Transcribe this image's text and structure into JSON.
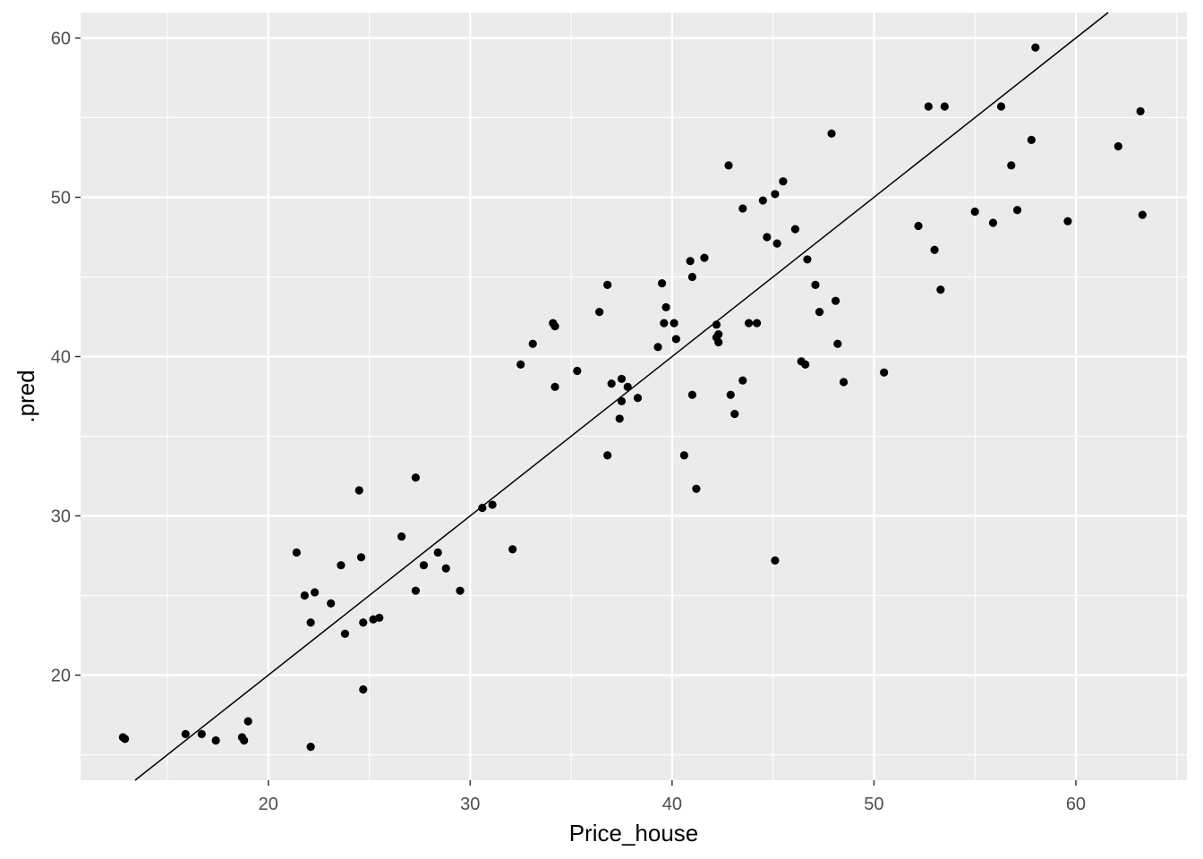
{
  "chart_data": {
    "type": "scatter",
    "title": "",
    "xlabel": "Price_house",
    "ylabel": ".pred",
    "xlim": [
      10.7,
      65.5
    ],
    "ylim": [
      13.4,
      61.6
    ],
    "x_ticks": [
      20,
      30,
      40,
      50,
      60
    ],
    "y_ticks": [
      20,
      30,
      40,
      50,
      60
    ],
    "grid": true,
    "legend": "none",
    "colors": {
      "panel": "#ebebeb",
      "grid": "#ffffff",
      "point": "#000000",
      "line": "#000000"
    },
    "reference_line": {
      "slope": 1,
      "intercept": 0
    },
    "points": [
      {
        "x": 12.8,
        "y": 16.1
      },
      {
        "x": 12.9,
        "y": 16.0
      },
      {
        "x": 15.9,
        "y": 16.3
      },
      {
        "x": 16.7,
        "y": 16.3
      },
      {
        "x": 17.4,
        "y": 15.9
      },
      {
        "x": 18.7,
        "y": 16.1
      },
      {
        "x": 18.8,
        "y": 15.9
      },
      {
        "x": 19.0,
        "y": 17.1
      },
      {
        "x": 22.1,
        "y": 15.5
      },
      {
        "x": 21.4,
        "y": 27.7
      },
      {
        "x": 21.8,
        "y": 25.0
      },
      {
        "x": 22.1,
        "y": 23.3
      },
      {
        "x": 22.3,
        "y": 25.2
      },
      {
        "x": 23.1,
        "y": 24.5
      },
      {
        "x": 23.6,
        "y": 26.9
      },
      {
        "x": 23.8,
        "y": 22.6
      },
      {
        "x": 24.5,
        "y": 31.6
      },
      {
        "x": 24.6,
        "y": 27.4
      },
      {
        "x": 24.7,
        "y": 23.3
      },
      {
        "x": 24.7,
        "y": 19.1
      },
      {
        "x": 25.2,
        "y": 23.5
      },
      {
        "x": 25.5,
        "y": 23.6
      },
      {
        "x": 26.6,
        "y": 28.7
      },
      {
        "x": 27.3,
        "y": 32.4
      },
      {
        "x": 27.3,
        "y": 25.3
      },
      {
        "x": 27.7,
        "y": 26.9
      },
      {
        "x": 28.4,
        "y": 27.7
      },
      {
        "x": 28.8,
        "y": 26.7
      },
      {
        "x": 29.5,
        "y": 25.3
      },
      {
        "x": 30.6,
        "y": 30.5
      },
      {
        "x": 31.1,
        "y": 30.7
      },
      {
        "x": 32.1,
        "y": 27.9
      },
      {
        "x": 32.5,
        "y": 39.5
      },
      {
        "x": 33.1,
        "y": 40.8
      },
      {
        "x": 34.1,
        "y": 42.1
      },
      {
        "x": 34.2,
        "y": 41.9
      },
      {
        "x": 34.2,
        "y": 38.1
      },
      {
        "x": 35.3,
        "y": 39.1
      },
      {
        "x": 36.4,
        "y": 42.8
      },
      {
        "x": 36.8,
        "y": 44.5
      },
      {
        "x": 36.8,
        "y": 33.8
      },
      {
        "x": 37.0,
        "y": 38.3
      },
      {
        "x": 37.5,
        "y": 38.6
      },
      {
        "x": 37.5,
        "y": 37.2
      },
      {
        "x": 37.4,
        "y": 36.1
      },
      {
        "x": 37.8,
        "y": 38.1
      },
      {
        "x": 38.3,
        "y": 37.4
      },
      {
        "x": 39.3,
        "y": 40.6
      },
      {
        "x": 39.5,
        "y": 44.6
      },
      {
        "x": 39.6,
        "y": 42.1
      },
      {
        "x": 39.7,
        "y": 43.1
      },
      {
        "x": 40.1,
        "y": 42.1
      },
      {
        "x": 40.2,
        "y": 41.1
      },
      {
        "x": 40.6,
        "y": 33.8
      },
      {
        "x": 40.9,
        "y": 46.0
      },
      {
        "x": 41.0,
        "y": 45.0
      },
      {
        "x": 41.0,
        "y": 37.6
      },
      {
        "x": 41.2,
        "y": 31.7
      },
      {
        "x": 41.6,
        "y": 46.2
      },
      {
        "x": 42.2,
        "y": 42.0
      },
      {
        "x": 42.2,
        "y": 41.2
      },
      {
        "x": 42.3,
        "y": 41.4
      },
      {
        "x": 42.3,
        "y": 40.9
      },
      {
        "x": 42.8,
        "y": 52.0
      },
      {
        "x": 42.9,
        "y": 37.6
      },
      {
        "x": 43.1,
        "y": 36.4
      },
      {
        "x": 43.5,
        "y": 49.3
      },
      {
        "x": 43.5,
        "y": 38.5
      },
      {
        "x": 43.8,
        "y": 42.1
      },
      {
        "x": 44.2,
        "y": 42.1
      },
      {
        "x": 44.5,
        "y": 49.8
      },
      {
        "x": 44.7,
        "y": 47.5
      },
      {
        "x": 45.1,
        "y": 50.2
      },
      {
        "x": 45.2,
        "y": 47.1
      },
      {
        "x": 45.5,
        "y": 51.0
      },
      {
        "x": 45.1,
        "y": 27.2
      },
      {
        "x": 46.1,
        "y": 48.0
      },
      {
        "x": 46.4,
        "y": 39.7
      },
      {
        "x": 46.6,
        "y": 39.5
      },
      {
        "x": 46.7,
        "y": 46.1
      },
      {
        "x": 47.1,
        "y": 44.5
      },
      {
        "x": 47.3,
        "y": 42.8
      },
      {
        "x": 47.9,
        "y": 54.0
      },
      {
        "x": 48.1,
        "y": 43.5
      },
      {
        "x": 48.2,
        "y": 40.8
      },
      {
        "x": 48.5,
        "y": 38.4
      },
      {
        "x": 50.5,
        "y": 39.0
      },
      {
        "x": 52.2,
        "y": 48.2
      },
      {
        "x": 52.7,
        "y": 55.7
      },
      {
        "x": 53.0,
        "y": 46.7
      },
      {
        "x": 53.3,
        "y": 44.2
      },
      {
        "x": 53.5,
        "y": 55.7
      },
      {
        "x": 55.0,
        "y": 49.1
      },
      {
        "x": 55.9,
        "y": 48.4
      },
      {
        "x": 56.3,
        "y": 55.7
      },
      {
        "x": 56.8,
        "y": 52.0
      },
      {
        "x": 57.1,
        "y": 49.2
      },
      {
        "x": 57.8,
        "y": 53.6
      },
      {
        "x": 58.0,
        "y": 59.4
      },
      {
        "x": 59.6,
        "y": 48.5
      },
      {
        "x": 62.1,
        "y": 53.2
      },
      {
        "x": 63.2,
        "y": 55.4
      },
      {
        "x": 63.3,
        "y": 48.9
      }
    ]
  }
}
